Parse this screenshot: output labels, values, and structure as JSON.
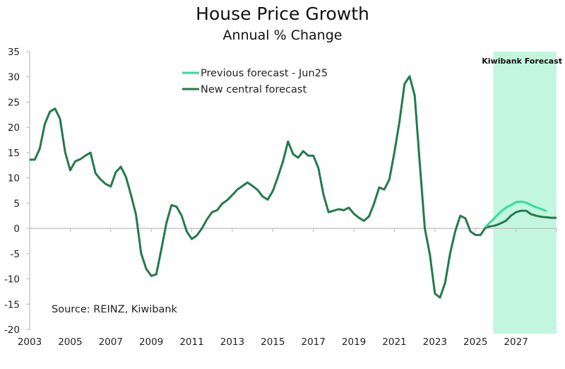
{
  "chart_data": {
    "type": "line",
    "title": "House Price Growth",
    "subtitle": "Annual % Change",
    "xlabel": "",
    "ylabel": "",
    "ylim": [
      -20,
      35
    ],
    "yticks": [
      35,
      30,
      25,
      20,
      15,
      10,
      5,
      0,
      -5,
      -10,
      -15,
      -20
    ],
    "xlim": [
      2003,
      2029
    ],
    "xticks": [
      2003,
      2005,
      2007,
      2009,
      2011,
      2013,
      2015,
      2017,
      2019,
      2021,
      2023,
      2025,
      2027
    ],
    "grid": false,
    "legend_position": "top-center",
    "annotation": "Source: REINZ, Kiwibank",
    "forecast_shading": {
      "label": "Kiwibank Forecast",
      "from": 2025.875,
      "to": 2029,
      "color": "#c3f6de"
    },
    "series": [
      {
        "name": "Previous forecast - Jun25",
        "color": "#2fe09a",
        "x": [
          2025.5,
          2025.75,
          2026,
          2026.25,
          2026.5,
          2026.75,
          2027,
          2027.25,
          2027.5,
          2027.75,
          2028,
          2028.25,
          2028.5
        ],
        "y": [
          0.3,
          1.3,
          2.3,
          3.3,
          4.1,
          4.6,
          5.2,
          5.3,
          5.1,
          4.6,
          4.2,
          3.8,
          3.4
        ]
      },
      {
        "name": "New central forecast",
        "color": "#237a4b",
        "x": [
          2003,
          2003.25,
          2003.5,
          2003.75,
          2004,
          2004.25,
          2004.5,
          2004.75,
          2005,
          2005.25,
          2005.5,
          2005.75,
          2006,
          2006.25,
          2006.5,
          2006.75,
          2007,
          2007.25,
          2007.5,
          2007.75,
          2008,
          2008.25,
          2008.5,
          2008.75,
          2009,
          2009.25,
          2009.5,
          2009.75,
          2010,
          2010.25,
          2010.5,
          2010.75,
          2011,
          2011.25,
          2011.5,
          2011.75,
          2012,
          2012.25,
          2012.5,
          2012.75,
          2013,
          2013.25,
          2013.5,
          2013.75,
          2014,
          2014.25,
          2014.5,
          2014.75,
          2015,
          2015.25,
          2015.5,
          2015.75,
          2016,
          2016.25,
          2016.5,
          2016.75,
          2017,
          2017.25,
          2017.5,
          2017.75,
          2018,
          2018.25,
          2018.5,
          2018.75,
          2019,
          2019.25,
          2019.5,
          2019.75,
          2020,
          2020.25,
          2020.5,
          2020.75,
          2021,
          2021.25,
          2021.5,
          2021.75,
          2022,
          2022.25,
          2022.5,
          2022.75,
          2023,
          2023.25,
          2023.5,
          2023.75,
          2024,
          2024.25,
          2024.5,
          2024.75,
          2025,
          2025.25,
          2025.5,
          2025.75,
          2026,
          2026.25,
          2026.5,
          2026.75,
          2027,
          2027.25,
          2027.5,
          2027.75,
          2028,
          2028.25,
          2028.5,
          2028.75,
          2029
        ],
        "y": [
          13.6,
          13.6,
          15.8,
          20.7,
          23.1,
          23.7,
          21.7,
          15.1,
          11.5,
          13.3,
          13.7,
          14.4,
          15.0,
          10.9,
          9.7,
          8.8,
          8.3,
          11.1,
          12.2,
          10.2,
          6.6,
          2.7,
          -4.9,
          -8.0,
          -9.4,
          -9.1,
          -4.1,
          1.1,
          4.6,
          4.3,
          2.5,
          -0.6,
          -2.1,
          -1.4,
          0.0,
          1.8,
          3.2,
          3.6,
          4.9,
          5.6,
          6.6,
          7.7,
          8.4,
          9.1,
          8.4,
          7.6,
          6.3,
          5.7,
          7.4,
          10.2,
          13.3,
          17.2,
          14.7,
          14.0,
          15.3,
          14.4,
          14.4,
          11.9,
          6.7,
          3.2,
          3.5,
          3.8,
          3.6,
          4.1,
          2.9,
          2.1,
          1.5,
          2.4,
          5.0,
          8.1,
          7.7,
          9.7,
          15.1,
          21.1,
          28.6,
          30.1,
          26.3,
          13.0,
          0.0,
          -5.2,
          -12.9,
          -13.7,
          -10.8,
          -4.9,
          -0.6,
          2.5,
          2.0,
          -0.6,
          -1.3,
          -1.3,
          0.2,
          0.4,
          0.6,
          1.0,
          1.5,
          2.5,
          3.2,
          3.5,
          3.5,
          2.8,
          2.5,
          2.3,
          2.2,
          2.1,
          2.1
        ]
      }
    ]
  }
}
